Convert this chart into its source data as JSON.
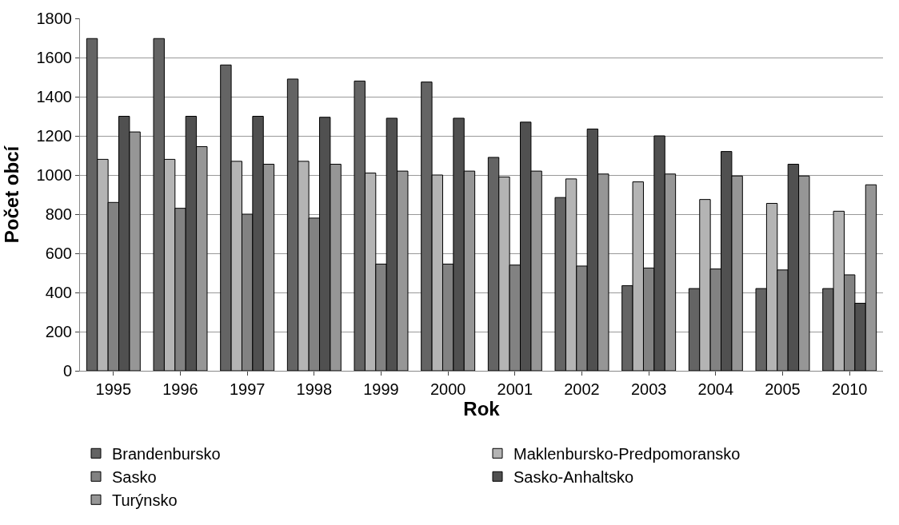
{
  "chart_data": {
    "type": "bar",
    "xlabel": "Rok",
    "ylabel": "Počet obcí",
    "categories": [
      "1995",
      "1996",
      "1997",
      "1998",
      "1999",
      "2000",
      "2001",
      "2002",
      "2003",
      "2004",
      "2005",
      "2010"
    ],
    "series": [
      {
        "name": "Brandenbursko",
        "color": "#646464",
        "values": [
          1697,
          1697,
          1562,
          1490,
          1480,
          1475,
          1090,
          885,
          435,
          420,
          420,
          420
        ]
      },
      {
        "name": "Maklenbursko-Predpomoransko",
        "color": "#b4b4b4",
        "values": [
          1080,
          1080,
          1070,
          1070,
          1010,
          1000,
          990,
          980,
          965,
          875,
          855,
          815
        ]
      },
      {
        "name": "Sasko",
        "color": "#828282",
        "values": [
          860,
          830,
          800,
          780,
          545,
          545,
          540,
          535,
          525,
          520,
          515,
          490
        ]
      },
      {
        "name": "Sasko-Anhaltsko",
        "color": "#505050",
        "values": [
          1300,
          1300,
          1300,
          1295,
          1290,
          1290,
          1270,
          1235,
          1200,
          1120,
          1055,
          345
        ]
      },
      {
        "name": "Turýnsko",
        "color": "#969696",
        "values": [
          1220,
          1145,
          1055,
          1055,
          1020,
          1020,
          1020,
          1005,
          1005,
          995,
          995,
          950
        ]
      }
    ],
    "ylim": [
      0,
      1800
    ],
    "yticks": [
      0,
      200,
      400,
      600,
      800,
      1000,
      1200,
      1400,
      1600,
      1800
    ],
    "grid": "y",
    "legend": "bottom"
  }
}
